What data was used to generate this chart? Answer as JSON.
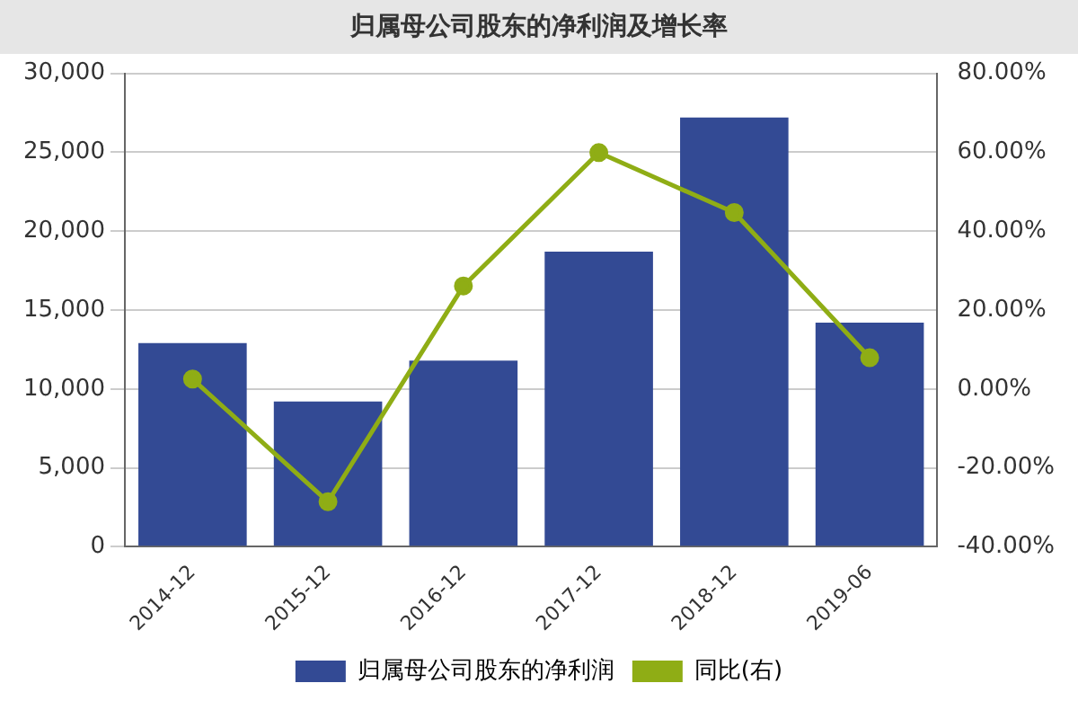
{
  "chart_data": {
    "type": "bar",
    "title": "归属母公司股东的净利润及增长率",
    "categories": [
      "2014-12",
      "2015-12",
      "2016-12",
      "2017-12",
      "2018-12",
      "2019-06"
    ],
    "series": [
      {
        "name": "归属母公司股东的净利润",
        "color": "#334a94",
        "values": [
          12900,
          9200,
          11800,
          18700,
          27200,
          14200
        ]
      },
      {
        "name": "同比(右)",
        "type": "line",
        "axis": "y2",
        "color": "#8fad15",
        "values": [
          2.5,
          -28.6,
          26.1,
          59.9,
          44.7,
          7.9
        ]
      }
    ],
    "ylim": [
      0,
      30000
    ],
    "yticks": [
      0,
      {
        "value": 5000,
        "label": "5,000"
      },
      {
        "value": 10000,
        "label": "10,000"
      },
      {
        "value": 15000,
        "label": "15,000"
      },
      {
        "value": 20000,
        "label": "20,000"
      },
      {
        "value": 25000,
        "label": "25,000"
      },
      {
        "value": 30000,
        "label": "30,000"
      }
    ],
    "y2lim": [
      -40,
      80
    ],
    "y2ticks": [
      {
        "value": -40,
        "label": "-40.00%"
      },
      {
        "value": -20,
        "label": "-20.00%"
      },
      {
        "value": 0,
        "label": "0.00%"
      },
      {
        "value": 20,
        "label": "20.00%"
      },
      {
        "value": 40,
        "label": "40.00%"
      },
      {
        "value": 60,
        "label": "60.00%"
      },
      {
        "value": 80,
        "label": "80.00%"
      }
    ],
    "grid": "y",
    "legend": "bottom",
    "marker": "circle",
    "line_style": "solid"
  }
}
